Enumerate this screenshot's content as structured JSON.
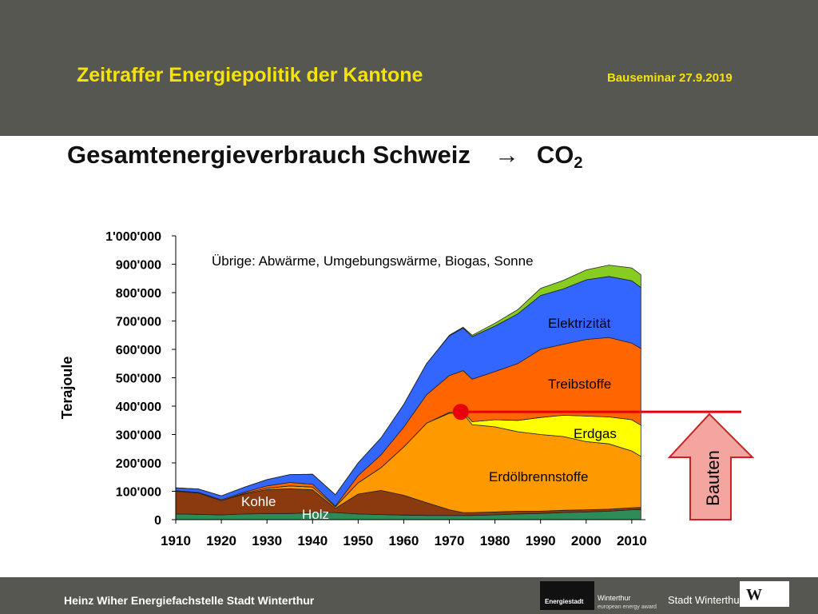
{
  "header": {
    "title": "Zeitraffer Energiepolitik der Kantone",
    "date": "Bauseminar 27.9.2019",
    "background": "#575752",
    "accent": "#f5e400"
  },
  "slide": {
    "title_main": "Gesamtenergieverbrauch Schweiz",
    "title_arrow": "→",
    "title_co": "CO",
    "title_sub": "2"
  },
  "chart_data": {
    "type": "area",
    "title": "",
    "xlabel": "",
    "ylabel": "Terajoule",
    "xlim": [
      1910,
      2013
    ],
    "ylim": [
      0,
      1000000
    ],
    "x_ticks": [
      1910,
      1920,
      1930,
      1940,
      1950,
      1960,
      1970,
      1980,
      1990,
      2000,
      2010
    ],
    "y_ticks": [
      "0",
      "100'000",
      "200'000",
      "300'000",
      "400'000",
      "500'000",
      "600'000",
      "700'000",
      "800'000",
      "900'000",
      "1'000'000"
    ],
    "y_tick_values": [
      0,
      100000,
      200000,
      300000,
      400000,
      500000,
      600000,
      700000,
      800000,
      900000,
      1000000
    ],
    "grid": false,
    "note": "Übrige: Abwärme, Umgebungswärme, Biogas, Sonne",
    "x": [
      1910,
      1915,
      1920,
      1925,
      1930,
      1935,
      1940,
      1945,
      1950,
      1955,
      1960,
      1965,
      1970,
      1973,
      1975,
      1980,
      1985,
      1990,
      1995,
      2000,
      2005,
      2010,
      2012
    ],
    "series": [
      {
        "name": "Holz",
        "color": "#2e8b57",
        "values": [
          20000,
          19000,
          17000,
          20000,
          21000,
          21000,
          25000,
          25000,
          20000,
          18000,
          16000,
          15000,
          15000,
          15000,
          15000,
          17000,
          20000,
          22000,
          25000,
          27000,
          30000,
          35000,
          36000
        ]
      },
      {
        "name": "Kohle",
        "color": "#8b3a10",
        "values": [
          80000,
          75000,
          50000,
          70000,
          85000,
          88000,
          80000,
          15000,
          70000,
          85000,
          70000,
          45000,
          20000,
          10000,
          10000,
          10000,
          10000,
          8000,
          8000,
          8000,
          7000,
          7000,
          7000
        ]
      },
      {
        "name": "Erdölbrennstoffe",
        "color": "#ff9900",
        "values": [
          0,
          0,
          0,
          3000,
          5000,
          10000,
          10000,
          5000,
          40000,
          80000,
          170000,
          280000,
          340000,
          350000,
          310000,
          300000,
          280000,
          270000,
          260000,
          240000,
          230000,
          200000,
          180000
        ]
      },
      {
        "name": "Erdgas",
        "color": "#ffff00",
        "values": [
          0,
          0,
          0,
          0,
          0,
          0,
          0,
          0,
          0,
          0,
          0,
          0,
          3000,
          5000,
          10000,
          25000,
          40000,
          60000,
          75000,
          90000,
          95000,
          110000,
          110000
        ]
      },
      {
        "name": "Treibstoffe",
        "color": "#ff6600",
        "values": [
          2000,
          2000,
          3000,
          4000,
          8000,
          12000,
          10000,
          3000,
          25000,
          45000,
          70000,
          100000,
          130000,
          145000,
          150000,
          170000,
          200000,
          240000,
          250000,
          270000,
          280000,
          270000,
          270000
        ]
      },
      {
        "name": "Elektrizität",
        "color": "#3366ff",
        "values": [
          10000,
          12000,
          14000,
          17000,
          22000,
          28000,
          35000,
          40000,
          45000,
          60000,
          80000,
          110000,
          140000,
          150000,
          150000,
          160000,
          175000,
          190000,
          195000,
          210000,
          215000,
          220000,
          215000
        ]
      },
      {
        "name": "Übrige",
        "color": "#88cc22",
        "values": [
          0,
          0,
          0,
          0,
          0,
          0,
          0,
          0,
          0,
          0,
          0,
          0,
          2000,
          3000,
          5000,
          10000,
          15000,
          25000,
          30000,
          35000,
          40000,
          45000,
          45000
        ]
      }
    ],
    "area_labels": [
      "Elektrizität",
      "Treibstoffe",
      "Erdgas",
      "Erdölbrennstoffe",
      "Kohle",
      "Holz"
    ],
    "marker": {
      "x": 1972.5,
      "y": 380000,
      "color": "#e8000a"
    },
    "level_line": {
      "y": 380000,
      "color": "#e8000a"
    },
    "arrow_label": "Bauten",
    "arrow_fill": "#f4a5a0",
    "arrow_stroke": "#cc2222"
  },
  "footer": {
    "text": "Heinz Wiher Energiefachstelle Stadt Winterthur",
    "logo_label": "Energiestadt",
    "logo_city": "Winterthur",
    "logo_award": "european energy award",
    "city_name": "Stadt Winterthur",
    "city_mark": "W"
  }
}
